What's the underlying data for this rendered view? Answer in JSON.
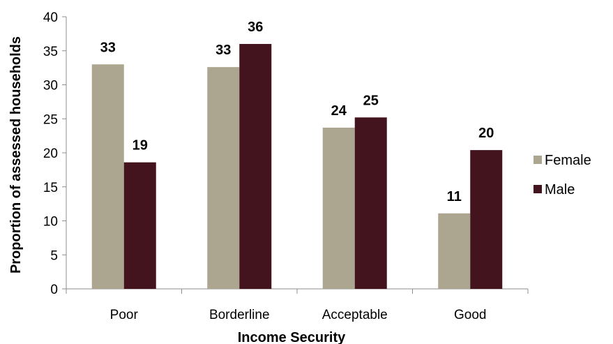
{
  "chart_data": {
    "type": "bar",
    "categories": [
      "Poor",
      "Borderline",
      "Acceptable",
      "Good"
    ],
    "series": [
      {
        "name": "Female",
        "values": [
          33,
          32.6,
          23.7,
          11.1
        ],
        "labels": [
          "33",
          "33",
          "24",
          "11"
        ],
        "color": "#aca58f"
      },
      {
        "name": "Male",
        "values": [
          18.6,
          36,
          25.2,
          20.4
        ],
        "labels": [
          "19",
          "36",
          "25",
          "20"
        ],
        "color": "#43141e"
      }
    ],
    "xlabel": "Income Security",
    "ylabel": "Proportion of assessed households",
    "ylim": [
      0,
      40
    ],
    "yticks": [
      0,
      5,
      10,
      15,
      20,
      25,
      30,
      35,
      40
    ],
    "grid": false,
    "legend": "right"
  }
}
